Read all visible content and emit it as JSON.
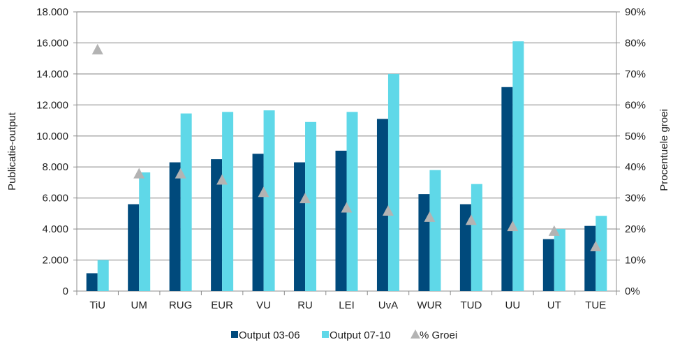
{
  "chart_data": {
    "type": "bar",
    "categories": [
      "TiU",
      "UM",
      "RUG",
      "EUR",
      "VU",
      "RU",
      "LEI",
      "UvA",
      "WUR",
      "TUD",
      "UU",
      "UT",
      "TUE"
    ],
    "series": [
      {
        "name": "Output 03-06",
        "kind": "bar",
        "axis": "left",
        "color": "#004a7c",
        "values": [
          1150,
          5600,
          8300,
          8500,
          8850,
          8300,
          9050,
          11100,
          6250,
          5600,
          13150,
          3350,
          4200
        ]
      },
      {
        "name": "Output 07-10",
        "kind": "bar",
        "axis": "left",
        "color": "#5fd8e8",
        "values": [
          2000,
          7650,
          11450,
          11550,
          11650,
          10900,
          11550,
          14000,
          7800,
          6900,
          16100,
          4000,
          4850
        ]
      },
      {
        "name": "% Groei",
        "kind": "marker",
        "marker": "triangle",
        "axis": "right",
        "color": "#b3b3b3",
        "values": [
          78,
          38,
          38,
          36,
          32,
          30,
          27,
          26,
          24,
          23,
          21,
          19.5,
          14.5
        ]
      }
    ],
    "ylabel": "Publicatie-output",
    "y2label": "Procentuele groei",
    "ylim": [
      0,
      18000
    ],
    "y2lim": [
      0,
      90
    ],
    "yticks": [
      "0",
      "2.000",
      "4.000",
      "6.000",
      "8.000",
      "10.000",
      "12.000",
      "14.000",
      "16.000",
      "18.000"
    ],
    "y2ticks": [
      "0%",
      "10%",
      "20%",
      "30%",
      "40%",
      "50%",
      "60%",
      "70%",
      "80%",
      "90%"
    ],
    "grid": true,
    "legend_position": "bottom"
  }
}
